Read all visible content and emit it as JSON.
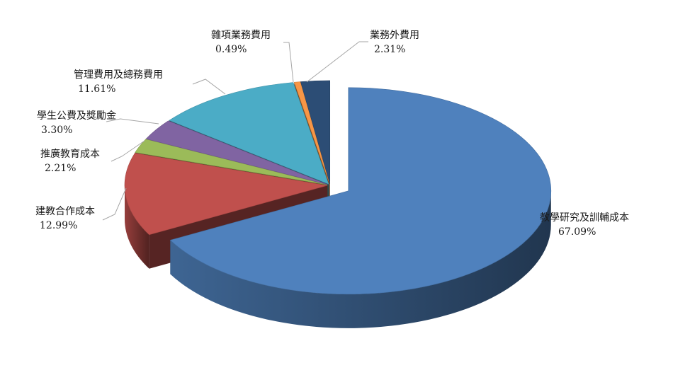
{
  "chart_data": {
    "type": "pie",
    "style": "3d-exploded",
    "title": "",
    "slices": [
      {
        "label": "教學研究及訓輔成本",
        "value": 67.09,
        "value_label": "67.09%",
        "color": "#4f81bd"
      },
      {
        "label": "建教合作成本",
        "value": 12.99,
        "value_label": "12.99%",
        "color": "#c0504d"
      },
      {
        "label": "推廣教育成本",
        "value": 2.21,
        "value_label": "2.21%",
        "color": "#9bbb59"
      },
      {
        "label": "學生公費及獎勵金",
        "value": 3.3,
        "value_label": "3.30%",
        "color": "#8064a2"
      },
      {
        "label": "管理費用及總務費用",
        "value": 11.61,
        "value_label": "11.61%",
        "color": "#4bacc6"
      },
      {
        "label": "雜項業務費用",
        "value": 0.49,
        "value_label": "0.49%",
        "color": "#f79646"
      },
      {
        "label": "業務外費用",
        "value": 2.31,
        "value_label": "2.31%",
        "color": "#2c4d75"
      }
    ],
    "legend": "none",
    "data_labels": "outside-with-leader-lines"
  }
}
